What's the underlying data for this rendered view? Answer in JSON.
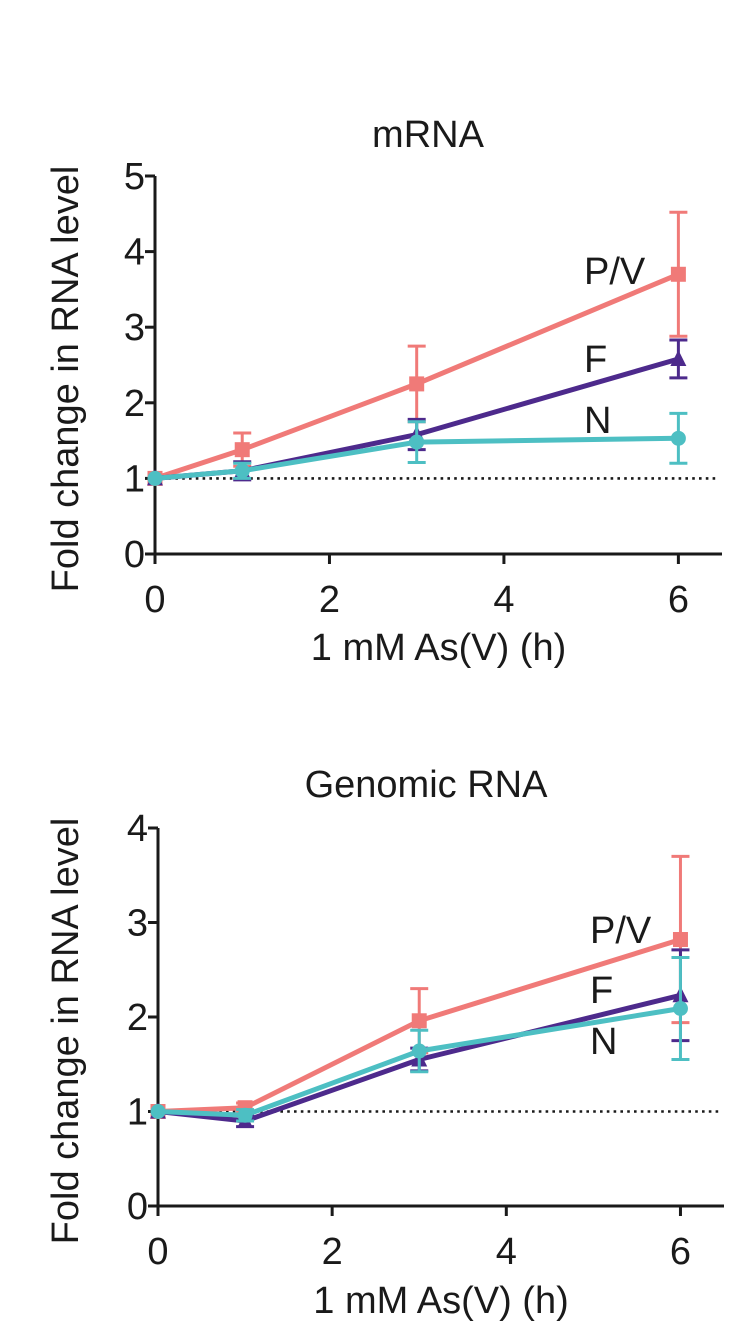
{
  "chart_data": [
    {
      "type": "line",
      "title": "mRNA",
      "xlabel": "1 mM As(V) (h)",
      "ylabel": "Fold change in RNA level",
      "xlim": [
        0,
        6.5
      ],
      "ylim": [
        0,
        5
      ],
      "xticks": [
        0,
        2,
        4,
        6
      ],
      "yticks": [
        0,
        1,
        2,
        3,
        4,
        5
      ],
      "reference_line_y": 1,
      "grid": false,
      "legend": "inline labels at series ends",
      "series": [
        {
          "name": "P/V",
          "color": "#f07a78",
          "marker": "square",
          "x": [
            0,
            1,
            3,
            6
          ],
          "y": [
            1.0,
            1.38,
            2.25,
            3.7
          ],
          "error": [
            0,
            0.22,
            0.5,
            0.82
          ]
        },
        {
          "name": "F",
          "color": "#4d2a8c",
          "marker": "triangle",
          "x": [
            0,
            1,
            3,
            6
          ],
          "y": [
            1.0,
            1.1,
            1.58,
            2.58
          ],
          "error": [
            0,
            0.12,
            0.2,
            0.25
          ]
        },
        {
          "name": "N",
          "color": "#4dbfc3",
          "marker": "circle",
          "x": [
            0,
            1,
            3,
            6
          ],
          "y": [
            1.0,
            1.1,
            1.48,
            1.53
          ],
          "error": [
            0,
            0.1,
            0.27,
            0.33
          ]
        }
      ]
    },
    {
      "type": "line",
      "title": "Genomic RNA",
      "xlabel": "1 mM As(V) (h)",
      "ylabel": "Fold change in RNA level",
      "xlim": [
        0,
        6.5
      ],
      "ylim": [
        0,
        4
      ],
      "xticks": [
        0,
        2,
        4,
        6
      ],
      "yticks": [
        0,
        1,
        2,
        3,
        4
      ],
      "reference_line_y": 1,
      "grid": false,
      "legend": "inline labels at series ends",
      "series": [
        {
          "name": "P/V",
          "color": "#f07a78",
          "marker": "square",
          "x": [
            0,
            1,
            3,
            6
          ],
          "y": [
            1.0,
            1.04,
            1.96,
            2.82
          ],
          "error": [
            0,
            0.05,
            0.34,
            0.88
          ]
        },
        {
          "name": "F",
          "color": "#4d2a8c",
          "marker": "triangle",
          "x": [
            0,
            1,
            3,
            6
          ],
          "y": [
            1.0,
            0.9,
            1.55,
            2.23
          ],
          "error": [
            0,
            0.06,
            0.12,
            0.48
          ]
        },
        {
          "name": "N",
          "color": "#4dbfc3",
          "marker": "circle",
          "x": [
            0,
            1,
            3,
            6
          ],
          "y": [
            1.0,
            0.96,
            1.64,
            2.09
          ],
          "error": [
            0,
            0.06,
            0.22,
            0.54
          ]
        }
      ]
    }
  ]
}
